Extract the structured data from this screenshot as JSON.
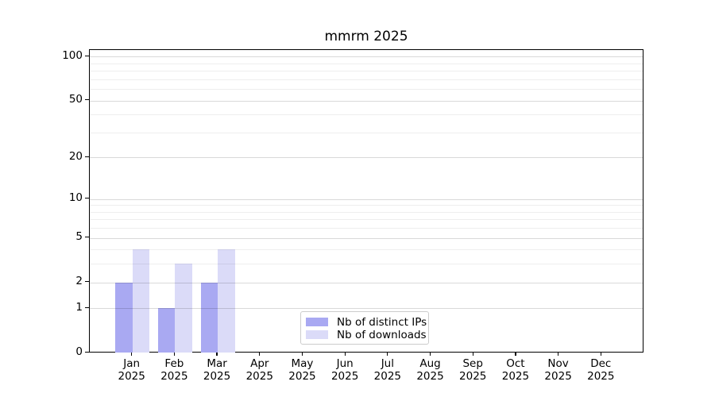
{
  "chart_data": {
    "type": "bar",
    "title": "mmrm 2025",
    "year_label": "2025",
    "months": [
      "Jan",
      "Feb",
      "Mar",
      "Apr",
      "May",
      "Jun",
      "Jul",
      "Aug",
      "Sep",
      "Oct",
      "Nov",
      "Dec"
    ],
    "series": [
      {
        "name": "Nb of distinct IPs",
        "color": "#a9a9f2",
        "values": [
          2,
          1,
          2,
          0,
          0,
          0,
          0,
          0,
          0,
          0,
          0,
          0
        ]
      },
      {
        "name": "Nb of downloads",
        "color": "#dbdbf8",
        "values": [
          4,
          3,
          4,
          0,
          0,
          0,
          0,
          0,
          0,
          0,
          0,
          0
        ]
      }
    ],
    "yscale": "log1p",
    "ylim": [
      0,
      111
    ],
    "yticks_major": [
      0,
      1,
      2,
      5,
      10,
      20,
      50,
      100
    ],
    "yticks_minor": [
      3,
      4,
      6,
      7,
      8,
      9,
      30,
      40,
      60,
      70,
      80,
      90
    ],
    "grid": "horizontal",
    "legend_position": "lower-center",
    "colors": {
      "grid_major": "rgba(0,0,0,0.15)",
      "grid_minor": "rgba(0,0,0,0.065)",
      "spine": "#000000",
      "legend_border": "#cccccc",
      "background": "#ffffff",
      "text": "#000000"
    }
  }
}
